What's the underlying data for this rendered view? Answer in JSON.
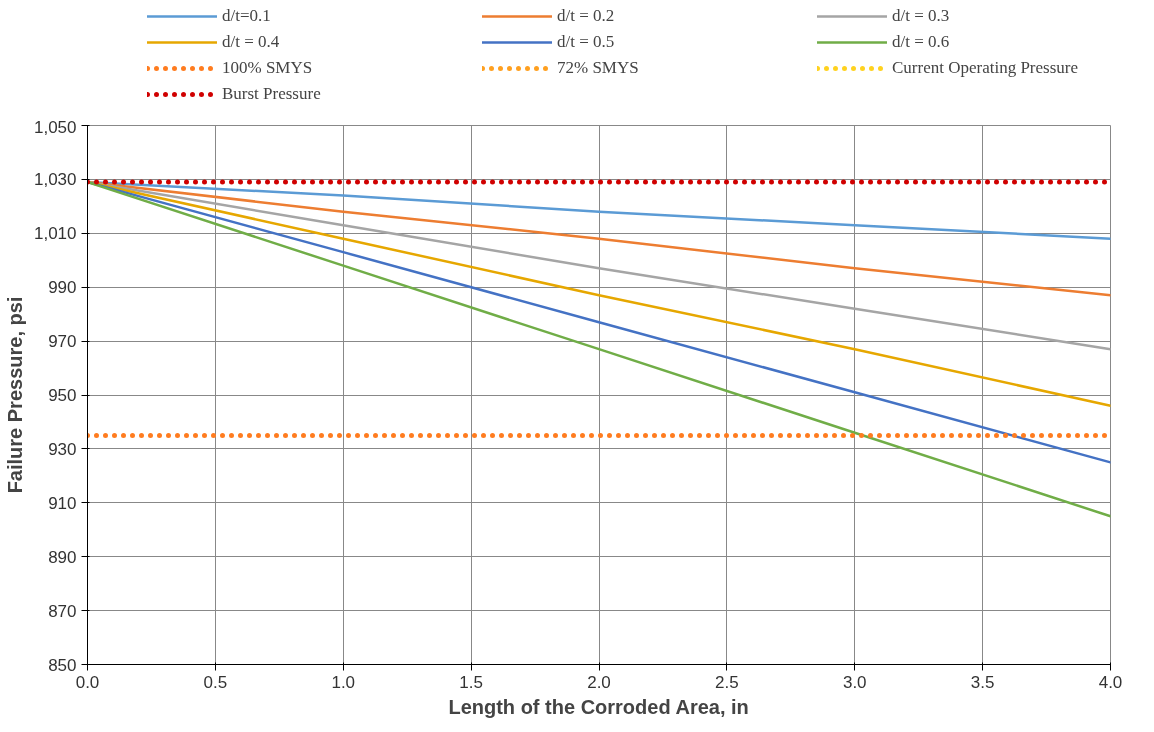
{
  "chart_data": {
    "type": "line",
    "xlabel": "Length of the Corroded Area, in",
    "ylabel": "Failure Pressure, psi",
    "x": [
      0,
      1,
      2,
      3,
      4
    ],
    "series": [
      {
        "name": "d/t=0.1",
        "color": "#5b9bd5",
        "values": [
          1029,
          1024,
          1018,
          1013,
          1008
        ]
      },
      {
        "name": "d/t = 0.2",
        "color": "#ed7d31",
        "values": [
          1029,
          1018,
          1008,
          997,
          987
        ]
      },
      {
        "name": "d/t = 0.3",
        "color": "#a5a5a5",
        "values": [
          1029,
          1013,
          997,
          982,
          967
        ]
      },
      {
        "name": "d/t = 0.4",
        "color": "#e6a700",
        "values": [
          1029,
          1008,
          987,
          967,
          946
        ]
      },
      {
        "name": "d/t = 0.5",
        "color": "#4472c4",
        "values": [
          1029,
          1003,
          977,
          951,
          925
        ]
      },
      {
        "name": "d/t = 0.6",
        "color": "#70ad47",
        "values": [
          1029,
          998,
          967,
          936,
          905
        ]
      },
      {
        "name": "100% SMYS",
        "color": "#ff7c1f",
        "line_style": "dotted",
        "values": [
          935,
          935,
          935,
          935,
          935
        ]
      },
      {
        "name": "72% SMYS",
        "color": "#ffa020",
        "line_style": "dotted",
        "values": [
          null,
          null,
          null,
          null,
          null
        ]
      },
      {
        "name": "Current Operating Pressure",
        "color": "#ffd21f",
        "line_style": "dotted",
        "values": [
          null,
          null,
          null,
          null,
          null
        ]
      },
      {
        "name": "Burst Pressure",
        "color": "#d00000",
        "line_style": "dotted",
        "values": [
          1029,
          1029,
          1029,
          1029,
          1029
        ]
      }
    ],
    "xlim": [
      0,
      4
    ],
    "ylim": [
      850,
      1050
    ],
    "xticks": [
      {
        "value": 0,
        "label": "0.0"
      },
      {
        "value": 0.5,
        "label": "0.5"
      },
      {
        "value": 1,
        "label": "1.0"
      },
      {
        "value": 1.5,
        "label": "1.5"
      },
      {
        "value": 2,
        "label": "2.0"
      },
      {
        "value": 2.5,
        "label": "2.5"
      },
      {
        "value": 3,
        "label": "3.0"
      },
      {
        "value": 3.5,
        "label": "3.5"
      },
      {
        "value": 4,
        "label": "4.0"
      }
    ],
    "yticks": [
      850,
      870,
      890,
      910,
      930,
      950,
      970,
      990,
      {
        "value": 1010,
        "label": "1,010"
      },
      {
        "value": 1030,
        "label": "1,030"
      },
      {
        "value": 1050,
        "label": "1,050"
      }
    ],
    "grid": true,
    "legend": "top",
    "line_style": "solid",
    "marker": "none"
  }
}
